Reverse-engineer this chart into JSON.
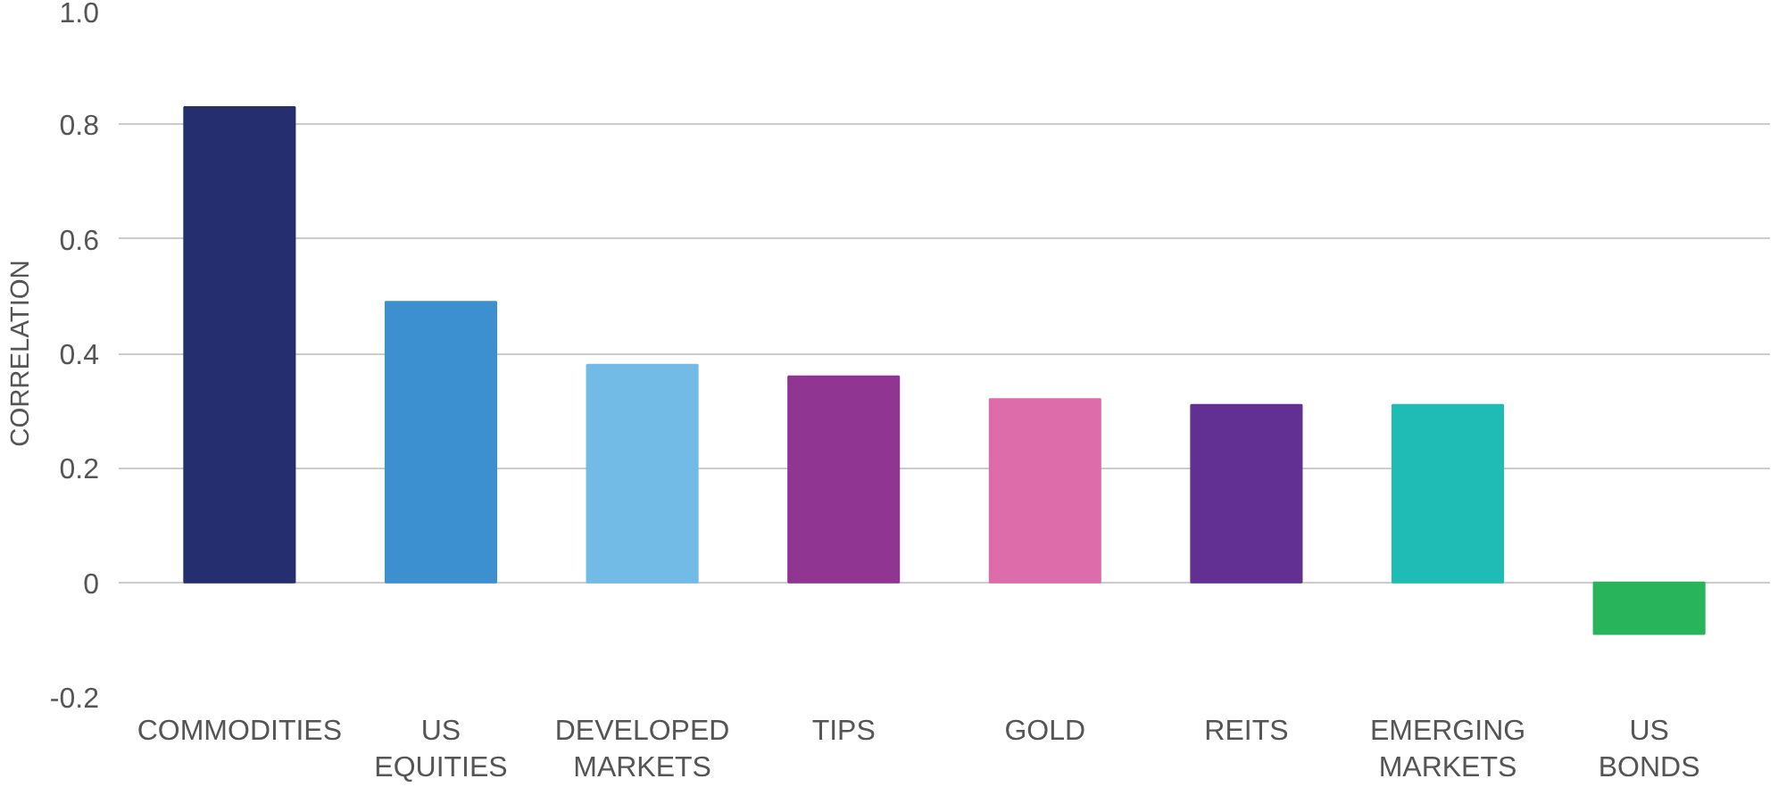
{
  "chart_data": {
    "type": "bar",
    "ylabel": "CORRELATION",
    "categories": [
      "COMMODITIES",
      "US\nEQUITIES",
      "DEVELOPED\nMARKETS",
      "TIPS",
      "GOLD",
      "REITS",
      "EMERGING\nMARKETS",
      "US\nBONDS"
    ],
    "values": [
      0.83,
      0.49,
      0.38,
      0.36,
      0.32,
      0.31,
      0.31,
      -0.09
    ],
    "colors": [
      "#252e6e",
      "#3d90d0",
      "#72bbe6",
      "#913592",
      "#dd6cab",
      "#623093",
      "#1fbcb5",
      "#28b45a"
    ],
    "ylim": [
      -0.2,
      1.0
    ],
    "yticks": [
      {
        "value": -0.2,
        "label": "-0.2"
      },
      {
        "value": 0,
        "label": "0"
      },
      {
        "value": 0.2,
        "label": "0.2"
      },
      {
        "value": 0.4,
        "label": "0.4"
      },
      {
        "value": 0.6,
        "label": "0.6"
      },
      {
        "value": 0.8,
        "label": "0.8"
      },
      {
        "value": 1.0,
        "label": "1.0"
      }
    ],
    "grid": "y"
  }
}
